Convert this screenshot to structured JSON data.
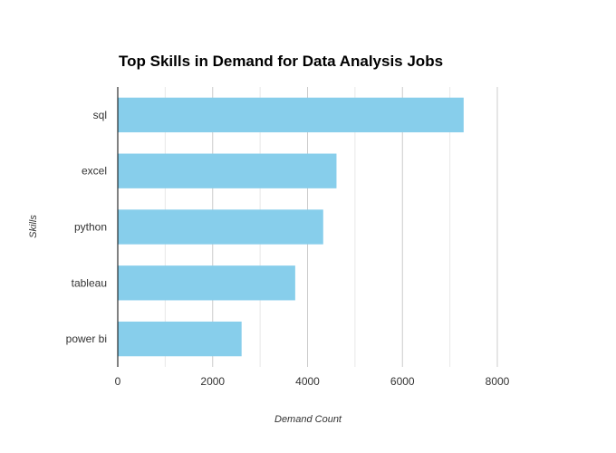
{
  "chart_data": {
    "type": "bar",
    "orientation": "horizontal",
    "title": "Top Skills in Demand for Data Analysis Jobs",
    "xlabel": "Demand Count",
    "ylabel": "Skills",
    "categories": [
      "sql",
      "excel",
      "python",
      "tableau",
      "power bi"
    ],
    "values": [
      7290,
      4610,
      4330,
      3740,
      2610
    ],
    "xlim": [
      0,
      8000
    ],
    "xticks": [
      "0",
      "2000",
      "4000",
      "6000",
      "8000"
    ],
    "minor_grid_step": 1000,
    "grid": true,
    "legend": "none",
    "colors": {
      "bar": "#87ceeb",
      "grid_major": "#cccccc",
      "grid_minor": "#e8e8e8",
      "axis": "#000000"
    }
  }
}
